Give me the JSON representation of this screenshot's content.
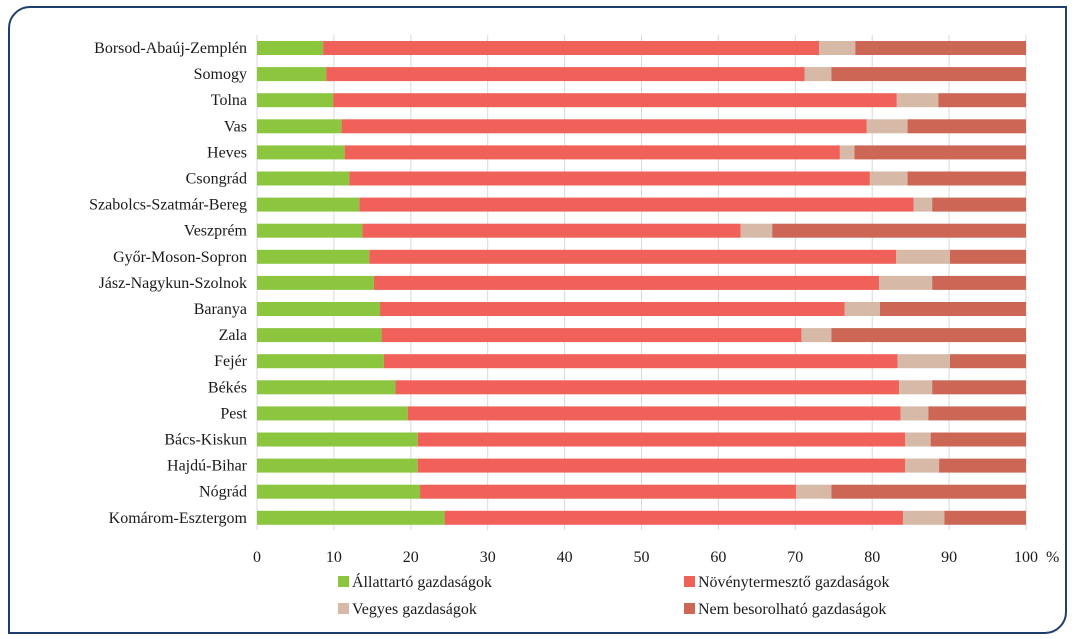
{
  "chart_data": {
    "type": "bar",
    "orientation": "horizontal",
    "stacked": true,
    "categories": [
      "Borsod-Abaúj-Zemplén",
      "Somogy",
      "Tolna",
      "Vas",
      "Heves",
      "Csongrád",
      "Szabolcs-Szatmár-Bereg",
      "Veszprém",
      "Győr-Moson-Sopron",
      "Jász-Nagykun-Szolnok",
      "Baranya",
      "Zala",
      "Fejér",
      "Békés",
      "Pest",
      "Bács-Kiskun",
      "Hajdú-Bihar",
      "Nógrád",
      "Komárom-Esztergom"
    ],
    "series": [
      {
        "name": "Állattartó gazdaságok",
        "color": "#8cc63f",
        "values": [
          8.6,
          9.0,
          9.9,
          11.0,
          11.4,
          12.0,
          13.3,
          13.7,
          14.6,
          15.2,
          16.0,
          16.2,
          16.5,
          18.0,
          19.6,
          20.9,
          20.9,
          21.2,
          24.4
        ]
      },
      {
        "name": "Növénytermesztő gazdaságok",
        "color": "#f0615a",
        "values": [
          64.5,
          62.2,
          73.3,
          68.3,
          64.4,
          67.7,
          72.1,
          49.2,
          68.5,
          65.7,
          60.4,
          54.6,
          66.8,
          65.5,
          64.1,
          63.4,
          63.4,
          48.9,
          59.6
        ]
      },
      {
        "name": "Vegyes gazdaságok",
        "color": "#d6b9a7",
        "values": [
          4.7,
          3.5,
          5.4,
          5.3,
          1.9,
          4.9,
          2.4,
          4.1,
          7.0,
          6.9,
          4.6,
          3.9,
          6.8,
          4.3,
          3.6,
          3.3,
          4.4,
          4.6,
          5.4
        ]
      },
      {
        "name": "Nem besorolható gazdaságok",
        "color": "#cc6655",
        "values": [
          22.2,
          25.3,
          11.4,
          15.4,
          22.3,
          15.4,
          12.2,
          33.0,
          9.9,
          12.2,
          19.0,
          25.3,
          9.9,
          12.2,
          12.7,
          12.4,
          11.3,
          25.3,
          10.6
        ]
      }
    ],
    "x_ticks": [
      "0",
      "10",
      "20",
      "30",
      "40",
      "50",
      "60",
      "70",
      "80",
      "90",
      "100"
    ],
    "x_unit": "%",
    "xlim": [
      0,
      100
    ],
    "grid": true,
    "legend_position": "bottom"
  }
}
